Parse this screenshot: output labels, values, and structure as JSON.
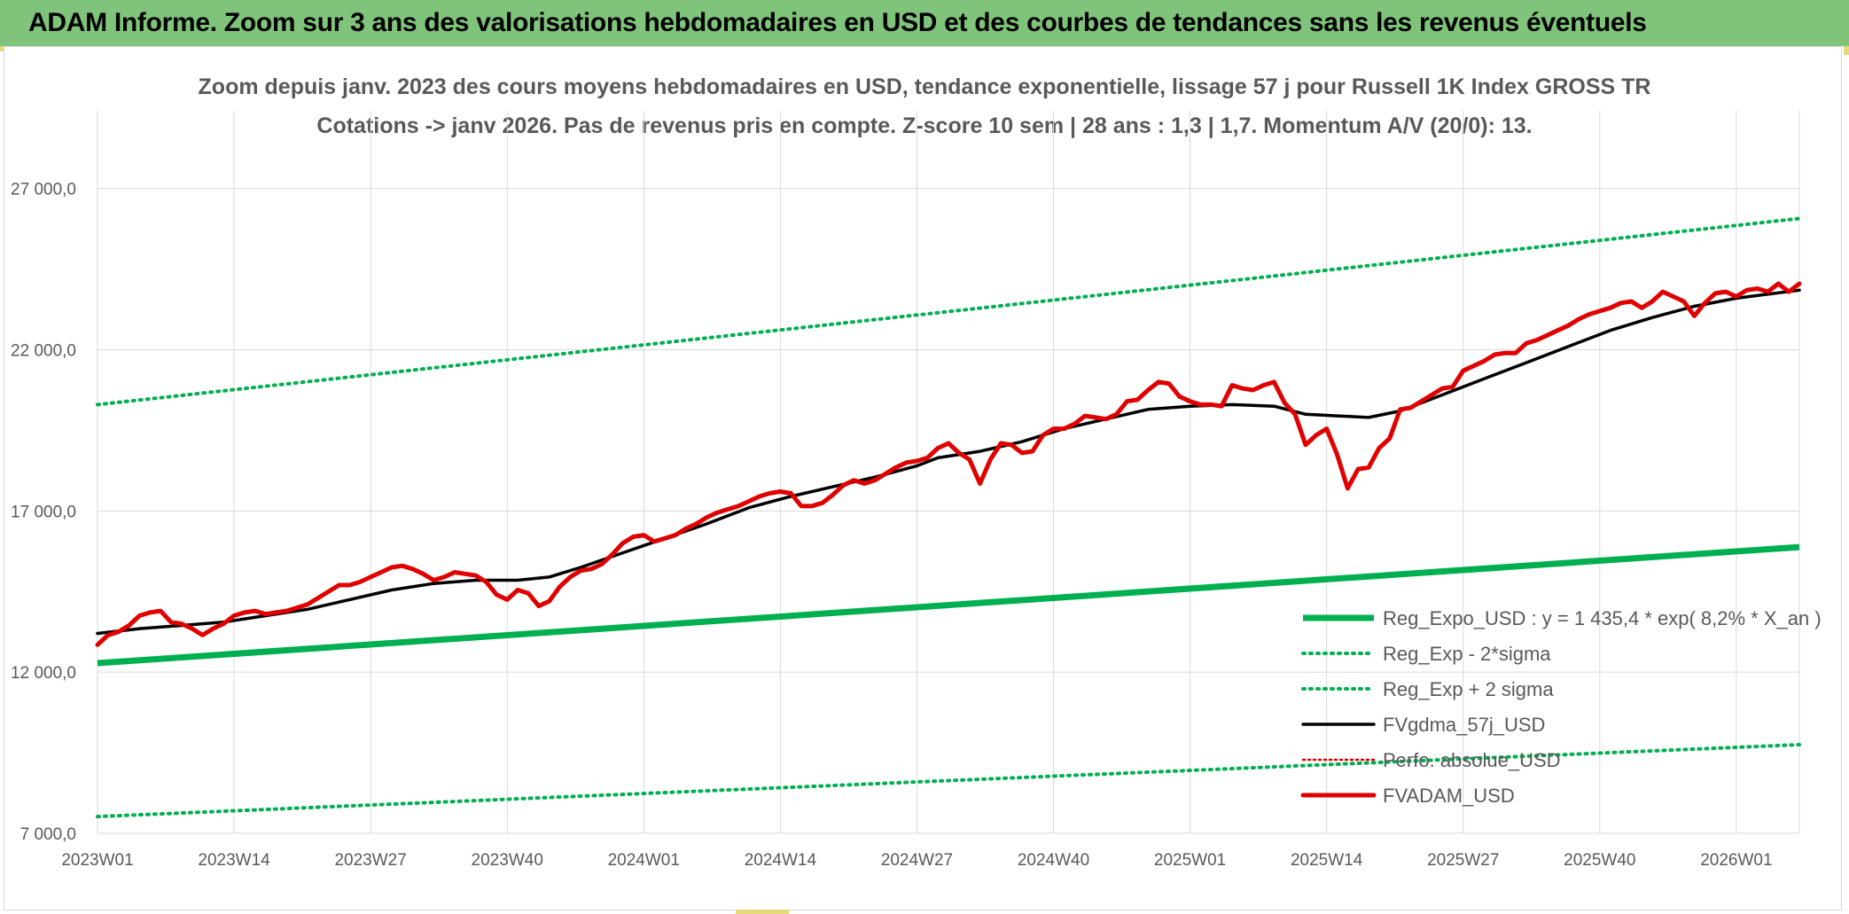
{
  "header": {
    "title": "ADAM Informe. Zoom sur 3 ans des valorisations hebdomadaires en USD et des courbes de tendances sans les revenus éventuels"
  },
  "colors": {
    "banner": "#7fc47a",
    "reg_expo": "#00b050",
    "fvgdma": "#000000",
    "perfo": "#e00000",
    "fvadam": "#e00000",
    "grid": "#d9d9d9",
    "text": "#595959"
  },
  "chart_data": {
    "type": "line",
    "title": "Zoom depuis janv. 2023 des cours moyens hebdomadaires en USD, tendance exponentielle, lissage 57 j pour Russell 1K Index GROSS TR",
    "subtitle": "Cotations -> janv 2026. Pas de revenus pris en compte. Z-score 10 sem | 28 ans : 1,3 | 1,7. Momentum A/V (20/0): 13.",
    "xlabel": "",
    "ylabel": "",
    "ylim": [
      7000,
      29000
    ],
    "x_range": [
      0,
      162
    ],
    "y_ticks": [
      {
        "value": 7000,
        "label": "7 000,0"
      },
      {
        "value": 12000,
        "label": "12 000,0"
      },
      {
        "value": 17000,
        "label": "17 000,0"
      },
      {
        "value": 22000,
        "label": "22 000,0"
      },
      {
        "value": 27000,
        "label": "27 000,0"
      }
    ],
    "x_ticks": [
      {
        "index": 0,
        "label": "2023W01"
      },
      {
        "index": 13,
        "label": "2023W14"
      },
      {
        "index": 26,
        "label": "2023W27"
      },
      {
        "index": 39,
        "label": "2023W40"
      },
      {
        "index": 52,
        "label": "2024W01"
      },
      {
        "index": 65,
        "label": "2024W14"
      },
      {
        "index": 78,
        "label": "2024W27"
      },
      {
        "index": 91,
        "label": "2024W40"
      },
      {
        "index": 104,
        "label": "2025W01"
      },
      {
        "index": 117,
        "label": "2025W14"
      },
      {
        "index": 130,
        "label": "2025W27"
      },
      {
        "index": 143,
        "label": "2025W40"
      },
      {
        "index": 156,
        "label": "2026W01"
      }
    ],
    "grid": true,
    "legend_position": "bottom-right",
    "series": [
      {
        "name": "Reg_Expo_USD : y = 1 435,4 * exp( 8,2% *  X_an )",
        "style": "solid-thick",
        "color": "#00b050",
        "points": [
          [
            0,
            12280
          ],
          [
            162,
            15880
          ]
        ]
      },
      {
        "name": "Reg_Exp - 2*sigma",
        "style": "dotted",
        "color": "#00b050",
        "points": [
          [
            0,
            7520
          ],
          [
            162,
            9750
          ]
        ]
      },
      {
        "name": "Reg_Exp + 2 sigma",
        "style": "dotted",
        "color": "#00b050",
        "points": [
          [
            0,
            20300
          ],
          [
            162,
            26070
          ]
        ]
      },
      {
        "name": "FVgdma_57j_USD",
        "style": "solid",
        "color": "#000000",
        "points": [
          [
            0,
            13200
          ],
          [
            4,
            13350
          ],
          [
            8,
            13450
          ],
          [
            12,
            13550
          ],
          [
            16,
            13750
          ],
          [
            20,
            13950
          ],
          [
            24,
            14250
          ],
          [
            28,
            14550
          ],
          [
            32,
            14750
          ],
          [
            36,
            14850
          ],
          [
            40,
            14850
          ],
          [
            43,
            14950
          ],
          [
            46,
            15250
          ],
          [
            50,
            15700
          ],
          [
            54,
            16150
          ],
          [
            58,
            16600
          ],
          [
            62,
            17100
          ],
          [
            66,
            17450
          ],
          [
            70,
            17750
          ],
          [
            74,
            18050
          ],
          [
            78,
            18400
          ],
          [
            80,
            18650
          ],
          [
            84,
            18850
          ],
          [
            88,
            19150
          ],
          [
            92,
            19550
          ],
          [
            96,
            19850
          ],
          [
            100,
            20150
          ],
          [
            104,
            20250
          ],
          [
            108,
            20300
          ],
          [
            112,
            20250
          ],
          [
            115,
            20000
          ],
          [
            118,
            19950
          ],
          [
            121,
            19900
          ],
          [
            124,
            20100
          ],
          [
            128,
            20600
          ],
          [
            132,
            21100
          ],
          [
            136,
            21600
          ],
          [
            140,
            22100
          ],
          [
            144,
            22600
          ],
          [
            148,
            23000
          ],
          [
            152,
            23350
          ],
          [
            156,
            23600
          ],
          [
            162,
            23850
          ]
        ]
      },
      {
        "name": "Perfo. absolue_USD",
        "style": "dotted",
        "color": "#e00000",
        "points": []
      },
      {
        "name": "FVADAM_USD",
        "style": "solid-thick",
        "color": "#e00000",
        "points": [
          [
            0,
            12850
          ],
          [
            1,
            13150
          ],
          [
            2,
            13250
          ],
          [
            3,
            13450
          ],
          [
            4,
            13750
          ],
          [
            5,
            13850
          ],
          [
            6,
            13900
          ],
          [
            7,
            13550
          ],
          [
            8,
            13500
          ],
          [
            9,
            13350
          ],
          [
            10,
            13150
          ],
          [
            11,
            13350
          ],
          [
            12,
            13500
          ],
          [
            13,
            13750
          ],
          [
            14,
            13850
          ],
          [
            15,
            13900
          ],
          [
            16,
            13800
          ],
          [
            17,
            13850
          ],
          [
            18,
            13900
          ],
          [
            19,
            14000
          ],
          [
            20,
            14100
          ],
          [
            21,
            14300
          ],
          [
            22,
            14500
          ],
          [
            23,
            14700
          ],
          [
            24,
            14700
          ],
          [
            25,
            14800
          ],
          [
            26,
            14950
          ],
          [
            27,
            15100
          ],
          [
            28,
            15250
          ],
          [
            29,
            15300
          ],
          [
            30,
            15200
          ],
          [
            31,
            15050
          ],
          [
            32,
            14850
          ],
          [
            33,
            14950
          ],
          [
            34,
            15100
          ],
          [
            35,
            15050
          ],
          [
            36,
            15000
          ],
          [
            37,
            14800
          ],
          [
            38,
            14400
          ],
          [
            39,
            14250
          ],
          [
            40,
            14550
          ],
          [
            41,
            14450
          ],
          [
            42,
            14050
          ],
          [
            43,
            14200
          ],
          [
            44,
            14650
          ],
          [
            45,
            14950
          ],
          [
            46,
            15150
          ],
          [
            47,
            15200
          ],
          [
            48,
            15350
          ],
          [
            49,
            15650
          ],
          [
            50,
            16000
          ],
          [
            51,
            16200
          ],
          [
            52,
            16250
          ],
          [
            53,
            16050
          ],
          [
            54,
            16150
          ],
          [
            55,
            16250
          ],
          [
            56,
            16450
          ],
          [
            57,
            16600
          ],
          [
            58,
            16800
          ],
          [
            59,
            16950
          ],
          [
            60,
            17050
          ],
          [
            61,
            17150
          ],
          [
            62,
            17300
          ],
          [
            63,
            17450
          ],
          [
            64,
            17550
          ],
          [
            65,
            17600
          ],
          [
            66,
            17550
          ],
          [
            67,
            17150
          ],
          [
            68,
            17150
          ],
          [
            69,
            17250
          ],
          [
            70,
            17500
          ],
          [
            71,
            17800
          ],
          [
            72,
            17950
          ],
          [
            73,
            17850
          ],
          [
            74,
            17950
          ],
          [
            75,
            18150
          ],
          [
            76,
            18350
          ],
          [
            77,
            18500
          ],
          [
            78,
            18550
          ],
          [
            79,
            18650
          ],
          [
            80,
            18950
          ],
          [
            81,
            19100
          ],
          [
            82,
            18800
          ],
          [
            83,
            18600
          ],
          [
            84,
            17850
          ],
          [
            85,
            18600
          ],
          [
            86,
            19100
          ],
          [
            87,
            19050
          ],
          [
            88,
            18800
          ],
          [
            89,
            18850
          ],
          [
            90,
            19350
          ],
          [
            91,
            19550
          ],
          [
            92,
            19550
          ],
          [
            93,
            19700
          ],
          [
            94,
            19950
          ],
          [
            95,
            19900
          ],
          [
            96,
            19850
          ],
          [
            97,
            20000
          ],
          [
            98,
            20400
          ],
          [
            99,
            20450
          ],
          [
            100,
            20750
          ],
          [
            101,
            21000
          ],
          [
            102,
            20950
          ],
          [
            103,
            20550
          ],
          [
            104,
            20400
          ],
          [
            105,
            20300
          ],
          [
            106,
            20300
          ],
          [
            107,
            20250
          ],
          [
            108,
            20900
          ],
          [
            109,
            20800
          ],
          [
            110,
            20750
          ],
          [
            111,
            20900
          ],
          [
            112,
            21000
          ],
          [
            113,
            20350
          ],
          [
            114,
            20000
          ],
          [
            115,
            19050
          ],
          [
            116,
            19350
          ],
          [
            117,
            19550
          ],
          [
            118,
            18750
          ],
          [
            119,
            17700
          ],
          [
            120,
            18300
          ],
          [
            121,
            18350
          ],
          [
            122,
            18950
          ],
          [
            123,
            19250
          ],
          [
            124,
            20150
          ],
          [
            125,
            20200
          ],
          [
            126,
            20400
          ],
          [
            127,
            20600
          ],
          [
            128,
            20800
          ],
          [
            129,
            20850
          ],
          [
            130,
            21350
          ],
          [
            131,
            21500
          ],
          [
            132,
            21650
          ],
          [
            133,
            21850
          ],
          [
            134,
            21900
          ],
          [
            135,
            21900
          ],
          [
            136,
            22200
          ],
          [
            137,
            22300
          ],
          [
            138,
            22450
          ],
          [
            139,
            22600
          ],
          [
            140,
            22750
          ],
          [
            141,
            22950
          ],
          [
            142,
            23100
          ],
          [
            143,
            23200
          ],
          [
            144,
            23300
          ],
          [
            145,
            23450
          ],
          [
            146,
            23500
          ],
          [
            147,
            23300
          ],
          [
            148,
            23500
          ],
          [
            149,
            23800
          ],
          [
            150,
            23650
          ],
          [
            151,
            23500
          ],
          [
            152,
            23050
          ],
          [
            153,
            23450
          ],
          [
            154,
            23750
          ],
          [
            155,
            23800
          ],
          [
            156,
            23650
          ],
          [
            157,
            23850
          ],
          [
            158,
            23900
          ],
          [
            159,
            23800
          ],
          [
            160,
            24050
          ],
          [
            161,
            23800
          ],
          [
            162,
            24050
          ]
        ]
      }
    ]
  }
}
